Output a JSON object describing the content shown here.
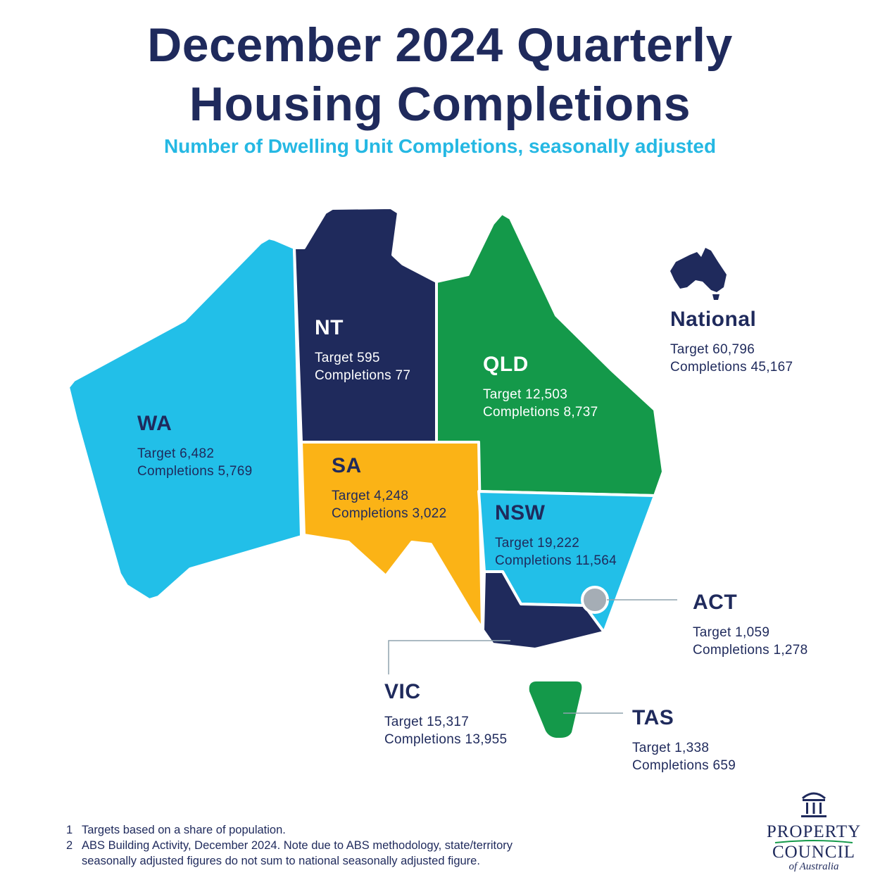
{
  "title_line1": "December 2024 Quarterly",
  "title_line2": "Housing Completions",
  "subtitle": "Number of Dwelling Unit Completions, seasonally adjusted",
  "colors": {
    "navy": "#1f2a5c",
    "sky_blue": "#22bfe8",
    "green": "#14994a",
    "amber": "#fbb316",
    "act_grey": "#a5adb5",
    "subtitle_blue": "#25b8e3"
  },
  "regions": {
    "wa": {
      "name": "WA",
      "target": "Target 6,482",
      "completions": "Completions 5,769"
    },
    "nt": {
      "name": "NT",
      "target": "Target 595",
      "completions": "Completions 77"
    },
    "qld": {
      "name": "QLD",
      "target": "Target 12,503",
      "completions": "Completions 8,737"
    },
    "sa": {
      "name": "SA",
      "target": "Target 4,248",
      "completions": "Completions 3,022"
    },
    "nsw": {
      "name": "NSW",
      "target": "Target 19,222",
      "completions": "Completions 11,564"
    },
    "act": {
      "name": "ACT",
      "target": "Target 1,059",
      "completions": "Completions 1,278"
    },
    "vic": {
      "name": "VIC",
      "target": "Target 15,317",
      "completions": "Completions 13,955"
    },
    "tas": {
      "name": "TAS",
      "target": "Target 1,338",
      "completions": "Completions 659"
    },
    "national": {
      "name": "National",
      "target": "Target 60,796",
      "completions": "Completions 45,167"
    }
  },
  "footnotes": [
    {
      "num": "1",
      "text": "Targets based on a share of population."
    },
    {
      "num": "2",
      "text": "ABS Building Activity, December 2024. Note due to ABS methodology, state/territory",
      "text2": "seasonally adjusted figures do not sum to national seasonally adjusted figure."
    }
  ],
  "logo": {
    "line1": "PROPERTY",
    "line2": "COUNCIL",
    "line3": "of Australia"
  },
  "icons": [
    "australia-icon",
    "property-council-building-icon"
  ]
}
